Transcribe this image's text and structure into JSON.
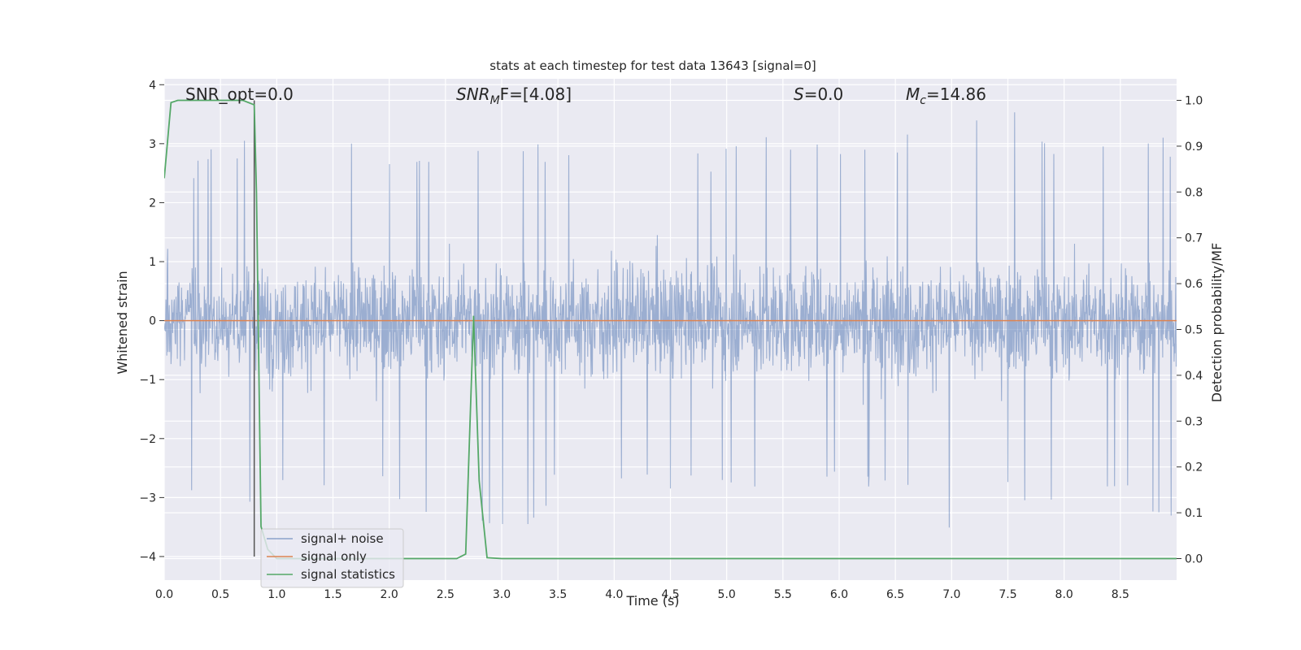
{
  "chart_data": {
    "type": "line",
    "title": "stats at each timestep for test data 13643 [signal=0]",
    "xlabel": "Time (s)",
    "ylabel": "Whitened strain",
    "y2label": "Detection probability/MF",
    "xlim": [
      0,
      9.0
    ],
    "ylim": [
      -4.4,
      4.1
    ],
    "y2lim": [
      -0.047,
      1.047
    ],
    "grid": true,
    "legend_position": "lower-left",
    "x_ticks": [
      0.0,
      0.5,
      1.0,
      1.5,
      2.0,
      2.5,
      3.0,
      3.5,
      4.0,
      4.5,
      5.0,
      5.5,
      6.0,
      6.5,
      7.0,
      7.5,
      8.0,
      8.5
    ],
    "x_tick_labels": [
      "0.0",
      "0.5",
      "1.0",
      "1.5",
      "2.0",
      "2.5",
      "3.0",
      "3.5",
      "4.0",
      "4.5",
      "5.0",
      "5.5",
      "6.0",
      "6.5",
      "7.0",
      "7.5",
      "8.0",
      "8.5"
    ],
    "y_ticks": [
      -4,
      -3,
      -2,
      -1,
      0,
      1,
      2,
      3,
      4
    ],
    "y_tick_labels": [
      "−4",
      "−3",
      "−2",
      "−1",
      "0",
      "1",
      "2",
      "3",
      "4"
    ],
    "y2_ticks": [
      0.0,
      0.1,
      0.2,
      0.3,
      0.4,
      0.5,
      0.6,
      0.7,
      0.8,
      0.9,
      1.0
    ],
    "y2_tick_labels": [
      "0.0",
      "0.1",
      "0.2",
      "0.3",
      "0.4",
      "0.5",
      "0.6",
      "0.7",
      "0.8",
      "0.9",
      "1.0"
    ],
    "annotations": {
      "snr_opt": "SNR_opt=0.0",
      "snr_mf_main": "SNR",
      "snr_mf_sub": "M",
      "snr_mf_tail": "F=[4.08]",
      "s_main": "S",
      "s_tail": "=0.0",
      "mc_main": "M",
      "mc_sub": "c",
      "mc_tail": "=14.86"
    },
    "vline_x": 0.8,
    "noise_envelope": {
      "x": [
        0.0,
        0.5,
        1.0,
        1.5,
        2.0,
        2.5,
        3.0,
        3.5,
        4.0,
        4.5,
        5.0,
        5.5,
        6.0,
        6.5,
        7.0,
        7.5,
        8.0,
        8.5,
        9.0
      ],
      "upper": [
        2.5,
        3.0,
        3.6,
        3.2,
        2.8,
        3.3,
        3.1,
        3.0,
        2.9,
        2.9,
        3.0,
        3.2,
        3.2,
        3.3,
        3.2,
        3.8,
        3.2,
        3.3,
        3.1
      ],
      "lower": [
        -2.8,
        -3.3,
        -3.0,
        -2.9,
        -3.0,
        -3.6,
        -4.0,
        -3.0,
        -2.8,
        -3.0,
        -2.9,
        -2.9,
        -3.0,
        -2.9,
        -3.7,
        -3.1,
        -3.2,
        -3.2,
        -3.4
      ]
    },
    "series": [
      {
        "name": "signal+ noise",
        "color": "#4c72b0",
        "axis": "left",
        "kind": "noise"
      },
      {
        "name": "signal only",
        "color": "#dd8452",
        "axis": "left",
        "x": [
          0.0,
          9.0
        ],
        "y": [
          0.0,
          0.0
        ]
      },
      {
        "name": "signal statistics",
        "color": "#55a868",
        "axis": "right",
        "x": [
          0.0,
          0.06,
          0.12,
          0.25,
          0.5,
          0.7,
          0.8,
          0.82,
          0.86,
          0.92,
          1.0,
          2.0,
          2.6,
          2.68,
          2.75,
          2.8,
          2.87,
          3.0,
          9.0
        ],
        "y": [
          0.83,
          0.995,
          1.0,
          1.0,
          1.0,
          1.0,
          0.99,
          0.8,
          0.07,
          0.02,
          0.0,
          0.0,
          0.0,
          0.01,
          0.53,
          0.17,
          0.002,
          0.0,
          0.0
        ]
      }
    ]
  }
}
